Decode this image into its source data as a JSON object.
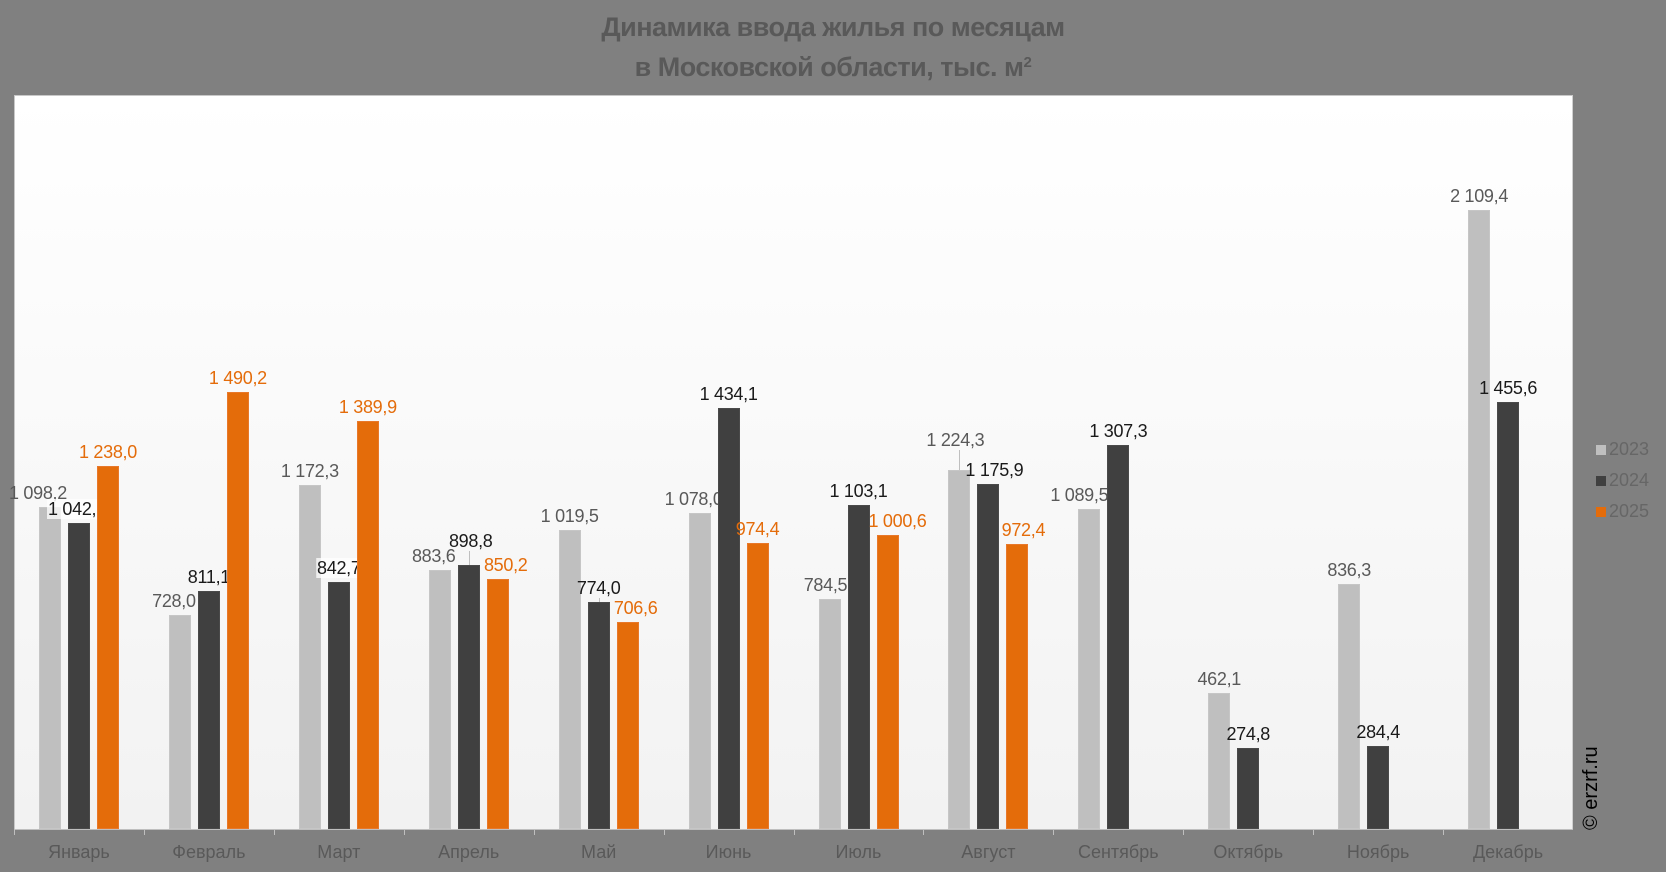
{
  "title": {
    "line1": "Динамика ввода жилья по месяцам",
    "line2": "в Московской области, тыс. м",
    "superscript": "2"
  },
  "copyright": "© erzrf.ru",
  "colors": {
    "2023": "#bfbfbf",
    "2024": "#404040",
    "2025": "#e46c0a",
    "background": "#808080"
  },
  "legend": [
    {
      "label": "2023",
      "color": "#bfbfbf"
    },
    {
      "label": "2024",
      "color": "#404040"
    },
    {
      "label": "2025",
      "color": "#e46c0a"
    }
  ],
  "chart_data": {
    "type": "bar",
    "title": "Динамика ввода жилья по месяцам в Московской области, тыс. м²",
    "xlabel": "",
    "ylabel": "тыс. м²",
    "ylim": [
      0,
      2500
    ],
    "grid": false,
    "legend_position": "right",
    "categories": [
      "Январь",
      "Февраль",
      "Март",
      "Апрель",
      "Май",
      "Июнь",
      "Июль",
      "Август",
      "Сентябрь",
      "Октябрь",
      "Ноябрь",
      "Декабрь"
    ],
    "series": [
      {
        "name": "2023",
        "values": [
          1098.2,
          728.0,
          1172.3,
          883.6,
          1019.5,
          1078.0,
          784.5,
          1224.3,
          1089.5,
          462.1,
          836.3,
          2109.4
        ],
        "labels": [
          "1 098,2",
          "728,0",
          "1 172,3",
          "883,6",
          "1 019,5",
          "1 078,0",
          "784,5",
          "1 224,3",
          "1 089,5",
          "462,1",
          "836,3",
          "2 109,4"
        ]
      },
      {
        "name": "2024",
        "values": [
          1042.7,
          811.1,
          842.7,
          898.8,
          774.0,
          1434.1,
          1103.1,
          1175.9,
          1307.3,
          274.8,
          284.4,
          1455.6
        ],
        "labels": [
          "1 042,7",
          "811,1",
          "842,7",
          "898,8",
          "774,0",
          "1 434,1",
          "1 103,1",
          "1 175,9",
          "1 307,3",
          "274,8",
          "284,4",
          "1 455,6"
        ]
      },
      {
        "name": "2025",
        "values": [
          1238.0,
          1490.2,
          1389.9,
          850.2,
          706.6,
          974.4,
          1000.6,
          972.4,
          null,
          null,
          null,
          null
        ],
        "labels": [
          "1 238,0",
          "1 490,2",
          "1 389,9",
          "850,2",
          "706,6",
          "974,4",
          "1 000,6",
          "972,4",
          null,
          null,
          null,
          null
        ]
      }
    ]
  }
}
